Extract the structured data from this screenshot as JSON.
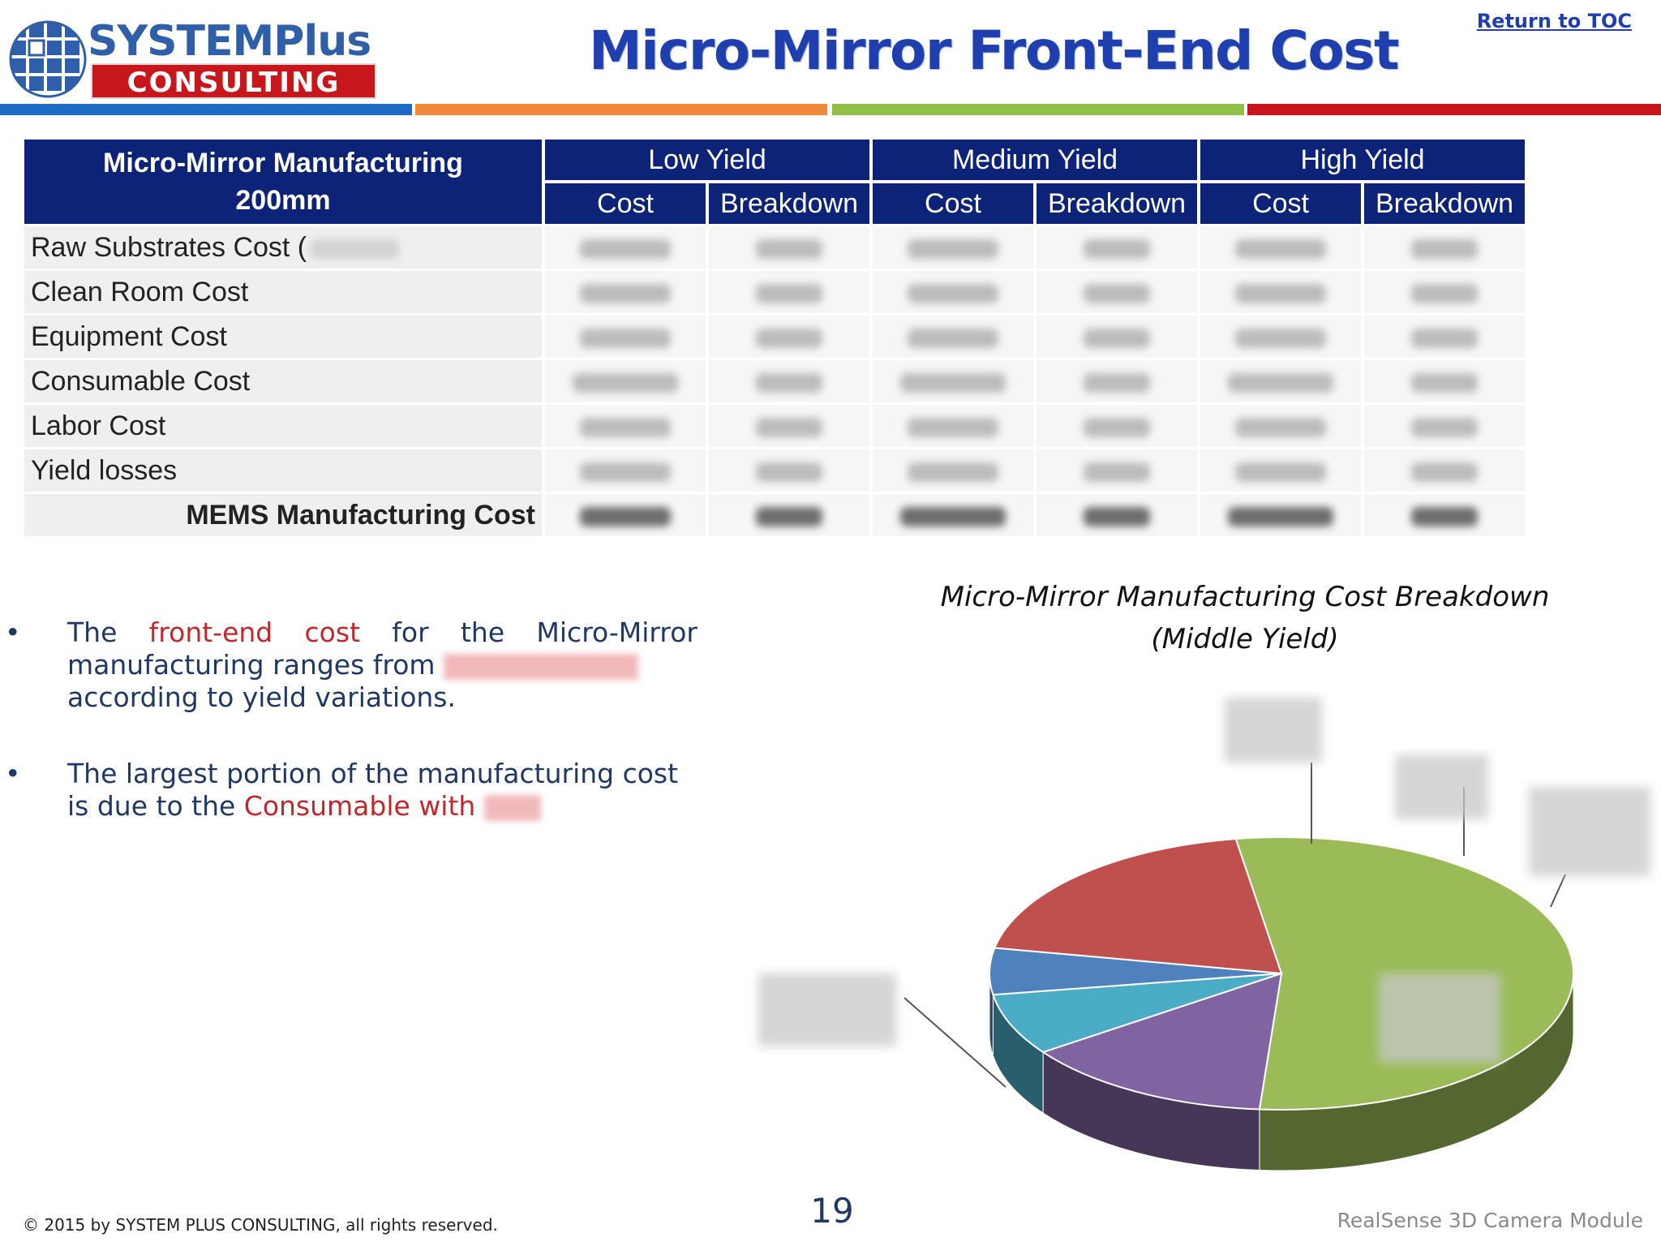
{
  "header": {
    "logo_top": "SYSTEMPlus",
    "logo_bottom": "CONSULTING",
    "title": "Micro-Mirror Front-End Cost",
    "toc_link": "Return to TOC",
    "stripe_colors": [
      "#1e6bc5",
      "#f0883a",
      "#8fbf45",
      "#c8141b"
    ]
  },
  "table": {
    "corner_line1": "Micro-Mirror Manufacturing",
    "corner_line2": "200mm",
    "groups": [
      "Low Yield",
      "Medium Yield",
      "High Yield"
    ],
    "subcols": [
      "Cost",
      "Breakdown"
    ],
    "rows": [
      "Raw Substrates Cost (",
      "Clean Room Cost",
      "Equipment Cost",
      "Consumable Cost",
      "Labor Cost",
      "Yield losses",
      "MEMS Manufacturing Cost"
    ]
  },
  "bullets": {
    "b1_pre": "The ",
    "b1_red": "front-end cost",
    "b1_mid": " for the Micro-Mirror manufacturing ranges from",
    "b1_post": "according to yield variations.",
    "b2_pre": "The largest portion of the manufacturing cost is due to the ",
    "b2_red": "Consumable with"
  },
  "chart_data": {
    "type": "pie",
    "title": "Micro-Mirror Manufacturing Cost Breakdown",
    "subtitle": "(Middle Yield)",
    "slices": [
      {
        "label": "",
        "value": 0.537,
        "color": "#9bbb59"
      },
      {
        "label": "",
        "value": 0.14,
        "color": "#8064a2"
      },
      {
        "label": "",
        "value": 0.073,
        "color": "#4bacc6"
      },
      {
        "label": "",
        "value": 0.055,
        "color": "#4f81bd"
      },
      {
        "label": "",
        "value": 0.195,
        "color": "#c0504d"
      }
    ]
  },
  "footer": {
    "copyright": "© 2015 by SYSTEM PLUS CONSULTING, all rights reserved.",
    "page_number": "19",
    "product": "RealSense 3D Camera Module"
  }
}
